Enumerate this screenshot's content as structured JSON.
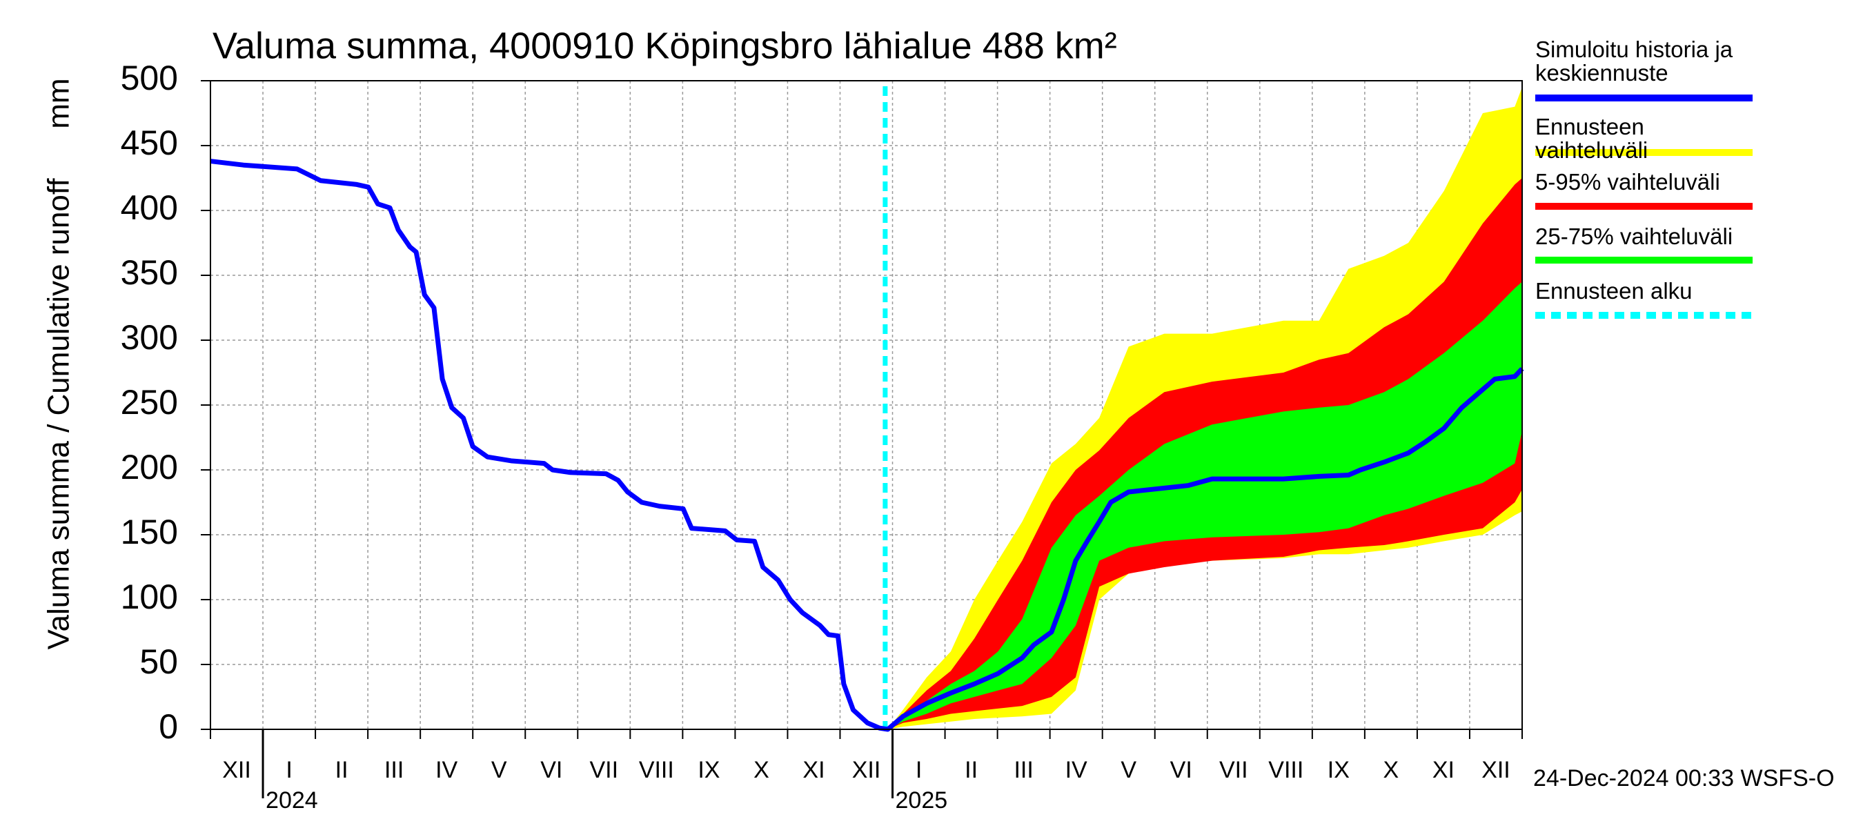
{
  "chart_data": {
    "type": "line",
    "title": "Valuma summa, 4000910 Köpingsbro lähialue 488 km²",
    "ylabel": "Valuma summa / Cumulative runoff",
    "yunit": "mm",
    "footer": "24-Dec-2024 00:33 WSFS-O",
    "xlim": [
      0,
      25
    ],
    "xticks": [
      0,
      1,
      2,
      3,
      4,
      5,
      6,
      7,
      8,
      9,
      10,
      11,
      12,
      13,
      14,
      15,
      16,
      17,
      18,
      19,
      20,
      21,
      22,
      23,
      24,
      25
    ],
    "months": [
      "XII",
      "I",
      "II",
      "III",
      "IV",
      "V",
      "VI",
      "VII",
      "VIII",
      "IX",
      "X",
      "XI",
      "XII",
      "I",
      "II",
      "III",
      "IV",
      "V",
      "VI",
      "VII",
      "VIII",
      "IX",
      "X",
      "XI",
      "XII"
    ],
    "years": [
      {
        "value": 1,
        "label": "2024"
      },
      {
        "value": 13,
        "label": "2025"
      }
    ],
    "ylim": [
      0,
      500
    ],
    "yticks": [
      0,
      50,
      100,
      150,
      200,
      250,
      300,
      350,
      400,
      450,
      500
    ],
    "grid": true,
    "band_x": [
      12.91,
      13.2,
      13.65,
      14.11,
      14.56,
      15.01,
      15.47,
      16.03,
      16.49,
      16.94,
      17.5,
      18.18,
      19.09,
      20.45,
      21.13,
      21.69,
      22.37,
      22.83,
      23.51,
      24.25,
      24.86,
      25.0
    ],
    "bands": [
      {
        "name": "Ennusteen vaihteluväli",
        "color": "#ffff00",
        "upper": [
          0,
          15,
          40,
          60,
          100,
          130,
          160,
          205,
          220,
          240,
          295,
          305,
          305,
          315,
          315,
          355,
          365,
          375,
          415,
          475,
          480,
          495
        ],
        "lower": [
          0,
          2,
          4,
          6,
          8,
          9,
          10,
          12,
          30,
          100,
          120,
          127,
          130,
          132,
          135,
          135,
          138,
          140,
          145,
          150,
          165,
          168
        ]
      },
      {
        "name": "5-95% vaihteluväli",
        "color": "#ff0000",
        "upper": [
          0,
          12,
          30,
          45,
          70,
          100,
          130,
          175,
          200,
          215,
          240,
          260,
          268,
          275,
          285,
          290,
          310,
          320,
          345,
          390,
          420,
          425
        ],
        "lower": [
          0,
          5,
          8,
          12,
          14,
          16,
          18,
          25,
          40,
          110,
          120,
          125,
          130,
          133,
          138,
          140,
          142,
          145,
          150,
          155,
          175,
          185
        ]
      },
      {
        "name": "25-75% vaihteluväli",
        "color": "#00ff00",
        "upper": [
          0,
          10,
          22,
          35,
          45,
          60,
          85,
          140,
          165,
          180,
          200,
          220,
          235,
          245,
          248,
          250,
          260,
          270,
          290,
          315,
          340,
          345
        ],
        "lower": [
          0,
          6,
          12,
          20,
          25,
          30,
          35,
          55,
          80,
          130,
          140,
          145,
          148,
          150,
          152,
          155,
          165,
          170,
          180,
          190,
          205,
          230
        ]
      }
    ],
    "series": [
      {
        "name": "Simuloitu historia ja keskiennuste",
        "color": "#0000ff",
        "x": [
          0,
          0.63,
          1.65,
          2.1,
          2.79,
          3.01,
          3.19,
          3.42,
          3.58,
          3.8,
          3.92,
          4.08,
          4.26,
          4.42,
          4.6,
          4.82,
          5.0,
          5.28,
          5.73,
          6.36,
          6.52,
          6.86,
          7.54,
          7.77,
          7.95,
          8.22,
          8.56,
          9.01,
          9.17,
          9.81,
          10.03,
          10.37,
          10.53,
          10.82,
          11.05,
          11.28,
          11.62,
          11.78,
          11.96,
          12.07,
          12.25,
          12.52,
          12.75,
          12.91,
          13.2,
          13.65,
          14.11,
          14.56,
          15.01,
          15.47,
          15.69,
          16.03,
          16.26,
          16.49,
          16.71,
          16.94,
          17.16,
          17.5,
          18.18,
          18.64,
          19.09,
          20.45,
          21.13,
          21.69,
          21.92,
          22.37,
          22.83,
          23.17,
          23.51,
          23.85,
          24.25,
          24.48,
          24.86,
          25.0
        ],
        "values": [
          438,
          435,
          432,
          423,
          420,
          418,
          405,
          402,
          385,
          372,
          368,
          335,
          325,
          270,
          248,
          240,
          218,
          210,
          207,
          205,
          200,
          198,
          197,
          192,
          183,
          175,
          172,
          170,
          155,
          153,
          146,
          145,
          125,
          115,
          100,
          90,
          80,
          73,
          72,
          35,
          15,
          5,
          1,
          0,
          10,
          20,
          28,
          35,
          43,
          55,
          65,
          75,
          100,
          130,
          145,
          160,
          175,
          183,
          186,
          188,
          193,
          193,
          195,
          196,
          200,
          206,
          213,
          222,
          232,
          248,
          262,
          270,
          272,
          278
        ]
      }
    ],
    "forecast_start": {
      "name": "Ennusteen alku",
      "color": "#00ffff",
      "x": 12.86
    }
  }
}
